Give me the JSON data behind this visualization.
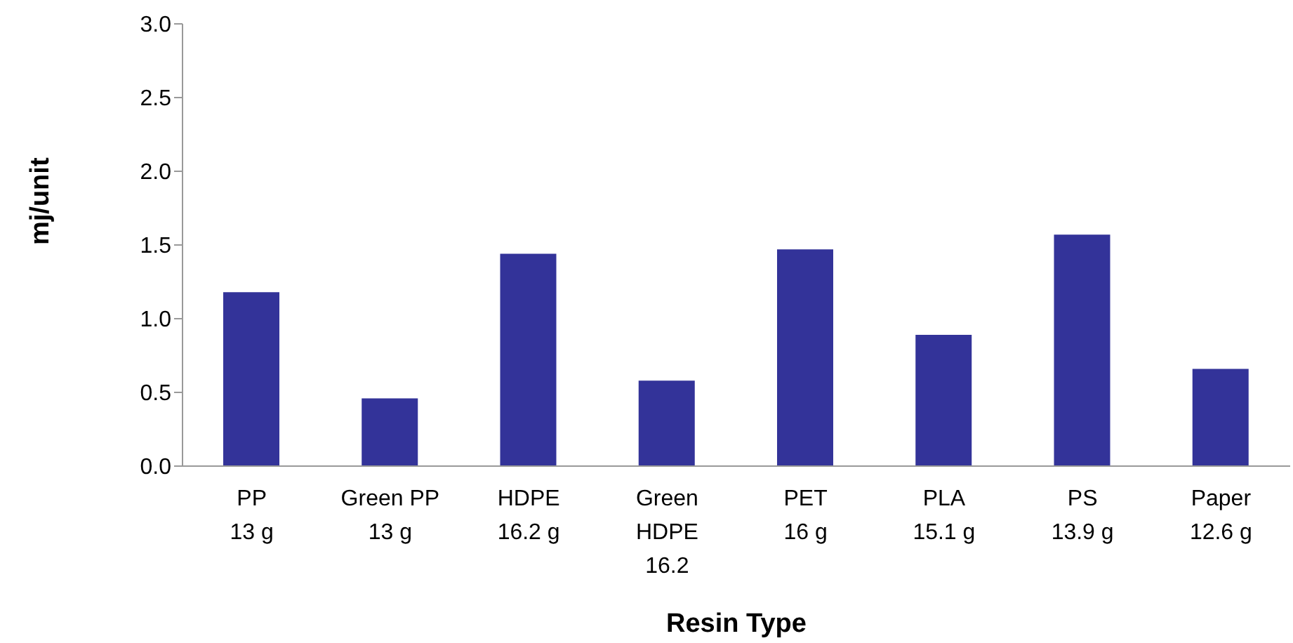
{
  "chart_data": {
    "type": "bar",
    "xlabel": "Resin Type",
    "ylabel": "mj/unit",
    "categories": [
      "PP\n13 g",
      "Green PP\n13 g",
      "HDPE\n16.2 g",
      "Green\nHDPE\n16.2",
      "PET\n16 g",
      "PLA\n15.1 g",
      "PS\n13.9 g",
      "Paper\n12.6 g"
    ],
    "values": [
      1.18,
      0.46,
      1.44,
      0.58,
      1.47,
      0.89,
      1.57,
      0.66
    ],
    "color": "#333399",
    "ylim": [
      0,
      3
    ],
    "yticks": [
      {
        "value": 0,
        "label": "0.0"
      },
      0.5,
      {
        "value": 1,
        "label": "1.0"
      },
      1.5,
      {
        "value": 2,
        "label": "2.0"
      },
      2.5,
      {
        "value": 3,
        "label": "3.0"
      }
    ],
    "grid": false,
    "legend": false
  }
}
